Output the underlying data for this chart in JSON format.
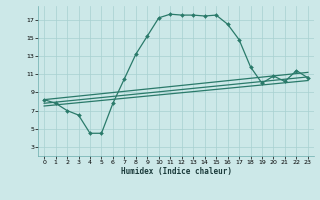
{
  "xlabel": "Humidex (Indice chaleur)",
  "background_color": "#cce8e8",
  "grid_color": "#a8d0d0",
  "line_color": "#2a7a6a",
  "xlim": [
    -0.5,
    23.5
  ],
  "ylim": [
    2,
    18.5
  ],
  "xticks": [
    0,
    1,
    2,
    3,
    4,
    5,
    6,
    7,
    8,
    9,
    10,
    11,
    12,
    13,
    14,
    15,
    16,
    17,
    18,
    19,
    20,
    21,
    22,
    23
  ],
  "yticks": [
    3,
    5,
    7,
    9,
    11,
    13,
    15,
    17
  ],
  "curve1_x": [
    0,
    1,
    2,
    3,
    4,
    5,
    6,
    7,
    8,
    9,
    10,
    11,
    12,
    13,
    14,
    15,
    16,
    17,
    18,
    19,
    20,
    21,
    22,
    23
  ],
  "curve1_y": [
    8.2,
    7.8,
    7.0,
    6.5,
    4.5,
    4.5,
    7.8,
    10.5,
    13.2,
    15.2,
    17.2,
    17.6,
    17.5,
    17.5,
    17.4,
    17.5,
    16.5,
    14.8,
    11.8,
    10.0,
    10.8,
    10.2,
    11.4,
    10.6
  ],
  "line1_x": [
    0,
    23
  ],
  "line1_y": [
    7.5,
    10.3
  ],
  "line2_x": [
    0,
    23
  ],
  "line2_y": [
    7.8,
    10.7
  ],
  "line3_x": [
    0,
    23
  ],
  "line3_y": [
    8.2,
    11.2
  ]
}
